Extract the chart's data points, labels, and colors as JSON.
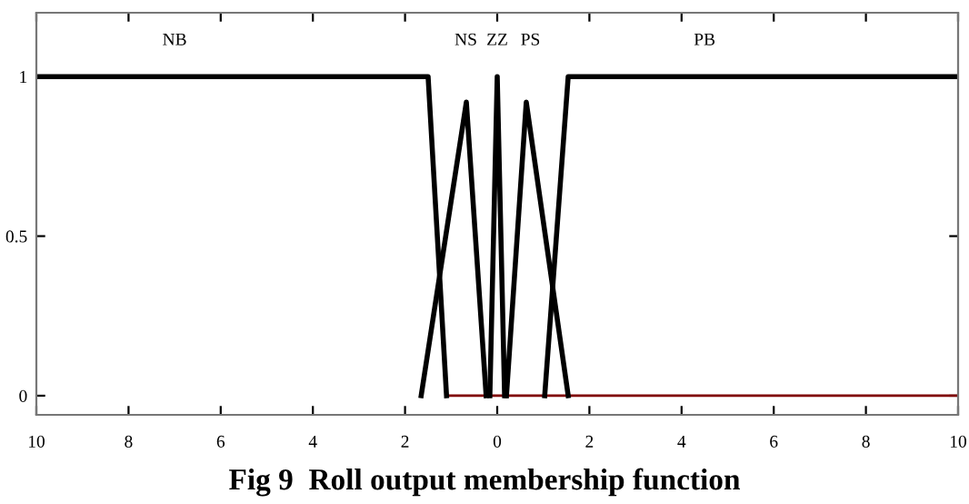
{
  "chart_data": {
    "type": "line",
    "title": "Fig 9  Roll output membership function",
    "series": [
      {
        "color": "#800000",
        "x": [
          -1.1,
          10
        ],
        "values": [
          0,
          0
        ]
      },
      {
        "color": "#000000",
        "x": [
          -10,
          -1.5,
          -1.1
        ],
        "values": [
          1,
          1,
          0
        ]
      },
      {
        "color": "#000000",
        "x": [
          -1.65,
          -0.67,
          -0.24
        ],
        "values": [
          0,
          0.92,
          0
        ]
      },
      {
        "color": "#000000",
        "x": [
          -0.16,
          0,
          0.16
        ],
        "values": [
          0,
          1,
          0
        ]
      },
      {
        "color": "#000000",
        "x": [
          0.2,
          0.63,
          1.54
        ],
        "values": [
          0,
          0.92,
          0
        ]
      },
      {
        "color": "#000000",
        "x": [
          1.03,
          1.54,
          10
        ],
        "values": [
          0,
          1,
          1
        ]
      }
    ],
    "annotations": [
      "NB",
      "NS",
      "ZZ",
      "PS",
      "PB"
    ],
    "xlim": [
      -10,
      10
    ],
    "xticks": [
      {
        "value": -10,
        "label": "10"
      },
      {
        "value": -8,
        "label": "8"
      },
      {
        "value": -6,
        "label": "6"
      },
      {
        "value": -4,
        "label": "4"
      },
      {
        "value": -2,
        "label": "2"
      },
      0,
      2,
      4,
      6,
      8,
      10
    ],
    "ylim": [
      -0.06,
      1.2
    ],
    "yticks": [
      0,
      0.5,
      1
    ],
    "grid": false,
    "legend": false,
    "marker": "none",
    "line_style": "solid"
  }
}
